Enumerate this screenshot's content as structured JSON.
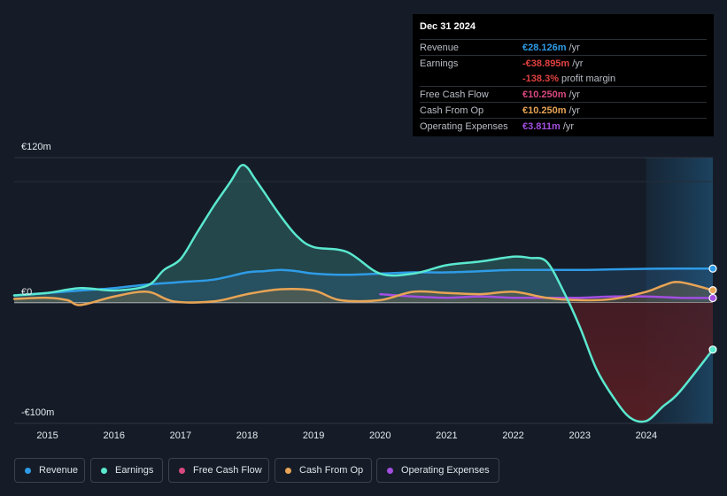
{
  "tooltip": {
    "date": "Dec 31 2024",
    "rows": [
      {
        "label": "Revenue",
        "value": "€28.126m",
        "unit": "/yr",
        "color": "#2e9be6"
      },
      {
        "label": "Earnings",
        "value": "-€38.895m",
        "unit": "/yr",
        "color": "#e0413f"
      },
      {
        "label": "",
        "value": "-138.3%",
        "unit": "profit margin",
        "color": "#e0413f"
      },
      {
        "label": "Free Cash Flow",
        "value": "€10.250m",
        "unit": "/yr",
        "color": "#d8497f"
      },
      {
        "label": "Cash From Op",
        "value": "€10.250m",
        "unit": "/yr",
        "color": "#e8a455"
      },
      {
        "label": "Operating Expenses",
        "value": "€3.811m",
        "unit": "/yr",
        "color": "#a24ee0"
      }
    ]
  },
  "chart_data": {
    "type": "area",
    "title": "",
    "xlabel": "",
    "ylabel": "",
    "ylim": [
      -100,
      120
    ],
    "y_tick_labels": [
      "€120m",
      "€0",
      "-€100m"
    ],
    "y_ticks": [
      120,
      0,
      -100
    ],
    "x_ticks": [
      2015,
      2016,
      2017,
      2018,
      2019,
      2020,
      2021,
      2022,
      2023,
      2024
    ],
    "x_tick_labels": [
      "2015",
      "2016",
      "2017",
      "2018",
      "2019",
      "2020",
      "2021",
      "2022",
      "2023",
      "2024"
    ],
    "xlim": [
      2014.5,
      2025.0
    ],
    "forecast_start": 2024.0,
    "series": [
      {
        "name": "Revenue",
        "color": "#2e9be6",
        "x": [
          2014.5,
          2015.0,
          2015.5,
          2016.0,
          2016.5,
          2017.0,
          2017.5,
          2018.0,
          2018.25,
          2018.5,
          2018.75,
          2019.0,
          2019.5,
          2020.0,
          2020.5,
          2021.0,
          2021.5,
          2022.0,
          2022.5,
          2023.0,
          2023.5,
          2024.0,
          2024.5,
          2025.0
        ],
        "y": [
          6,
          8,
          10,
          12,
          15,
          17,
          19,
          25,
          26,
          27,
          26,
          24,
          23,
          24,
          25,
          25,
          26,
          27,
          27,
          27,
          27.5,
          28,
          28.1,
          28.126
        ]
      },
      {
        "name": "Earnings",
        "color": "#5ae8cf",
        "x": [
          2014.5,
          2015.0,
          2015.5,
          2016.0,
          2016.5,
          2016.75,
          2017.0,
          2017.25,
          2017.5,
          2017.75,
          2017.9,
          2018.0,
          2018.1,
          2018.25,
          2018.5,
          2018.75,
          2019.0,
          2019.5,
          2020.0,
          2020.5,
          2021.0,
          2021.5,
          2022.0,
          2022.25,
          2022.5,
          2022.75,
          2023.0,
          2023.25,
          2023.5,
          2023.75,
          2024.0,
          2024.25,
          2024.5,
          2025.0
        ],
        "y": [
          6,
          8,
          12,
          10,
          14,
          27,
          36,
          58,
          80,
          100,
          113,
          112,
          104,
          92,
          72,
          55,
          46,
          42,
          24,
          24,
          31,
          34,
          38,
          37,
          34,
          10,
          -20,
          -55,
          -78,
          -95,
          -98,
          -86,
          -74,
          -38.895
        ]
      },
      {
        "name": "Free Cash Flow",
        "color": "#d8497f",
        "x": [],
        "y": []
      },
      {
        "name": "Cash From Op",
        "color": "#e8a455",
        "x": [
          2014.5,
          2015.0,
          2015.3,
          2015.5,
          2016.0,
          2016.5,
          2016.9,
          2017.5,
          2018.0,
          2018.5,
          2019.0,
          2019.4,
          2020.0,
          2020.5,
          2021.0,
          2021.5,
          2022.0,
          2022.5,
          2023.0,
          2023.5,
          2024.0,
          2024.25,
          2024.5,
          2025.0
        ],
        "y": [
          3,
          4,
          2,
          -2,
          5,
          9,
          1,
          1,
          7,
          11,
          10,
          2,
          2,
          9,
          8,
          7,
          9,
          4,
          2,
          3,
          9,
          14,
          17,
          10.25
        ]
      },
      {
        "name": "Operating Expenses",
        "color": "#a24ee0",
        "x": [
          2020.0,
          2020.5,
          2021.0,
          2021.5,
          2022.0,
          2022.5,
          2023.0,
          2023.5,
          2024.0,
          2024.5,
          2025.0
        ],
        "y": [
          7,
          5,
          4,
          5,
          4,
          4,
          4,
          5,
          5,
          4,
          3.811
        ]
      }
    ]
  },
  "legend": [
    {
      "label": "Revenue",
      "color": "#2e9be6"
    },
    {
      "label": "Earnings",
      "color": "#5ae8cf"
    },
    {
      "label": "Free Cash Flow",
      "color": "#d8497f"
    },
    {
      "label": "Cash From Op",
      "color": "#e8a455"
    },
    {
      "label": "Operating Expenses",
      "color": "#a24ee0"
    }
  ]
}
